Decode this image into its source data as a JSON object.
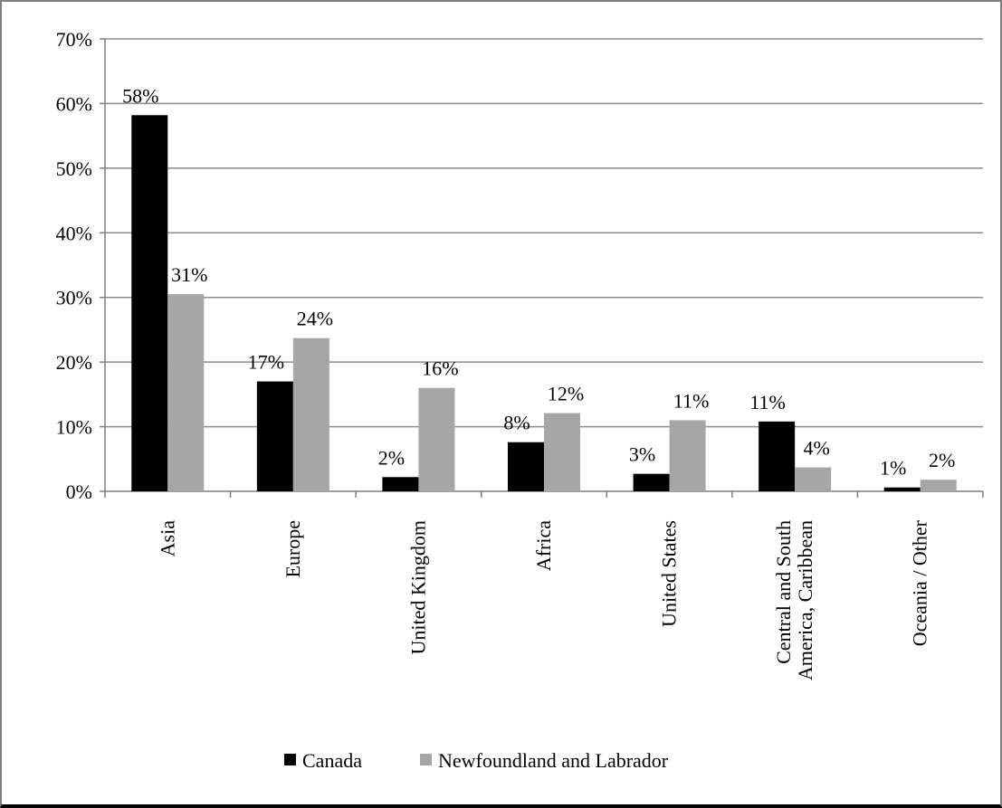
{
  "chart_data": {
    "type": "bar",
    "categories": [
      [
        "Asia"
      ],
      [
        "Europe"
      ],
      [
        "United Kingdom"
      ],
      [
        "Africa"
      ],
      [
        "United States"
      ],
      [
        "Central and South",
        "America, Caribbean"
      ],
      [
        "Oceania / Other"
      ]
    ],
    "series": [
      {
        "name": "Canada",
        "color": "#000000",
        "values": [
          58.2,
          17.0,
          2.2,
          7.6,
          2.7,
          10.8,
          0.6
        ],
        "labels": [
          "58%",
          "17%",
          "2%",
          "8%",
          "3%",
          "11%",
          "1%"
        ]
      },
      {
        "name": "Newfoundland and Labrador",
        "color": "#a6a6a6",
        "values": [
          30.5,
          23.7,
          16.0,
          12.1,
          11.0,
          3.7,
          1.8
        ],
        "labels": [
          "31%",
          "24%",
          "16%",
          "12%",
          "11%",
          "4%",
          "2%"
        ]
      }
    ],
    "ylim": [
      0,
      70
    ],
    "yticks": [
      "0%",
      "10%",
      "20%",
      "30%",
      "40%",
      "50%",
      "60%",
      "70%"
    ],
    "grid": true,
    "legend_position": "bottom"
  }
}
